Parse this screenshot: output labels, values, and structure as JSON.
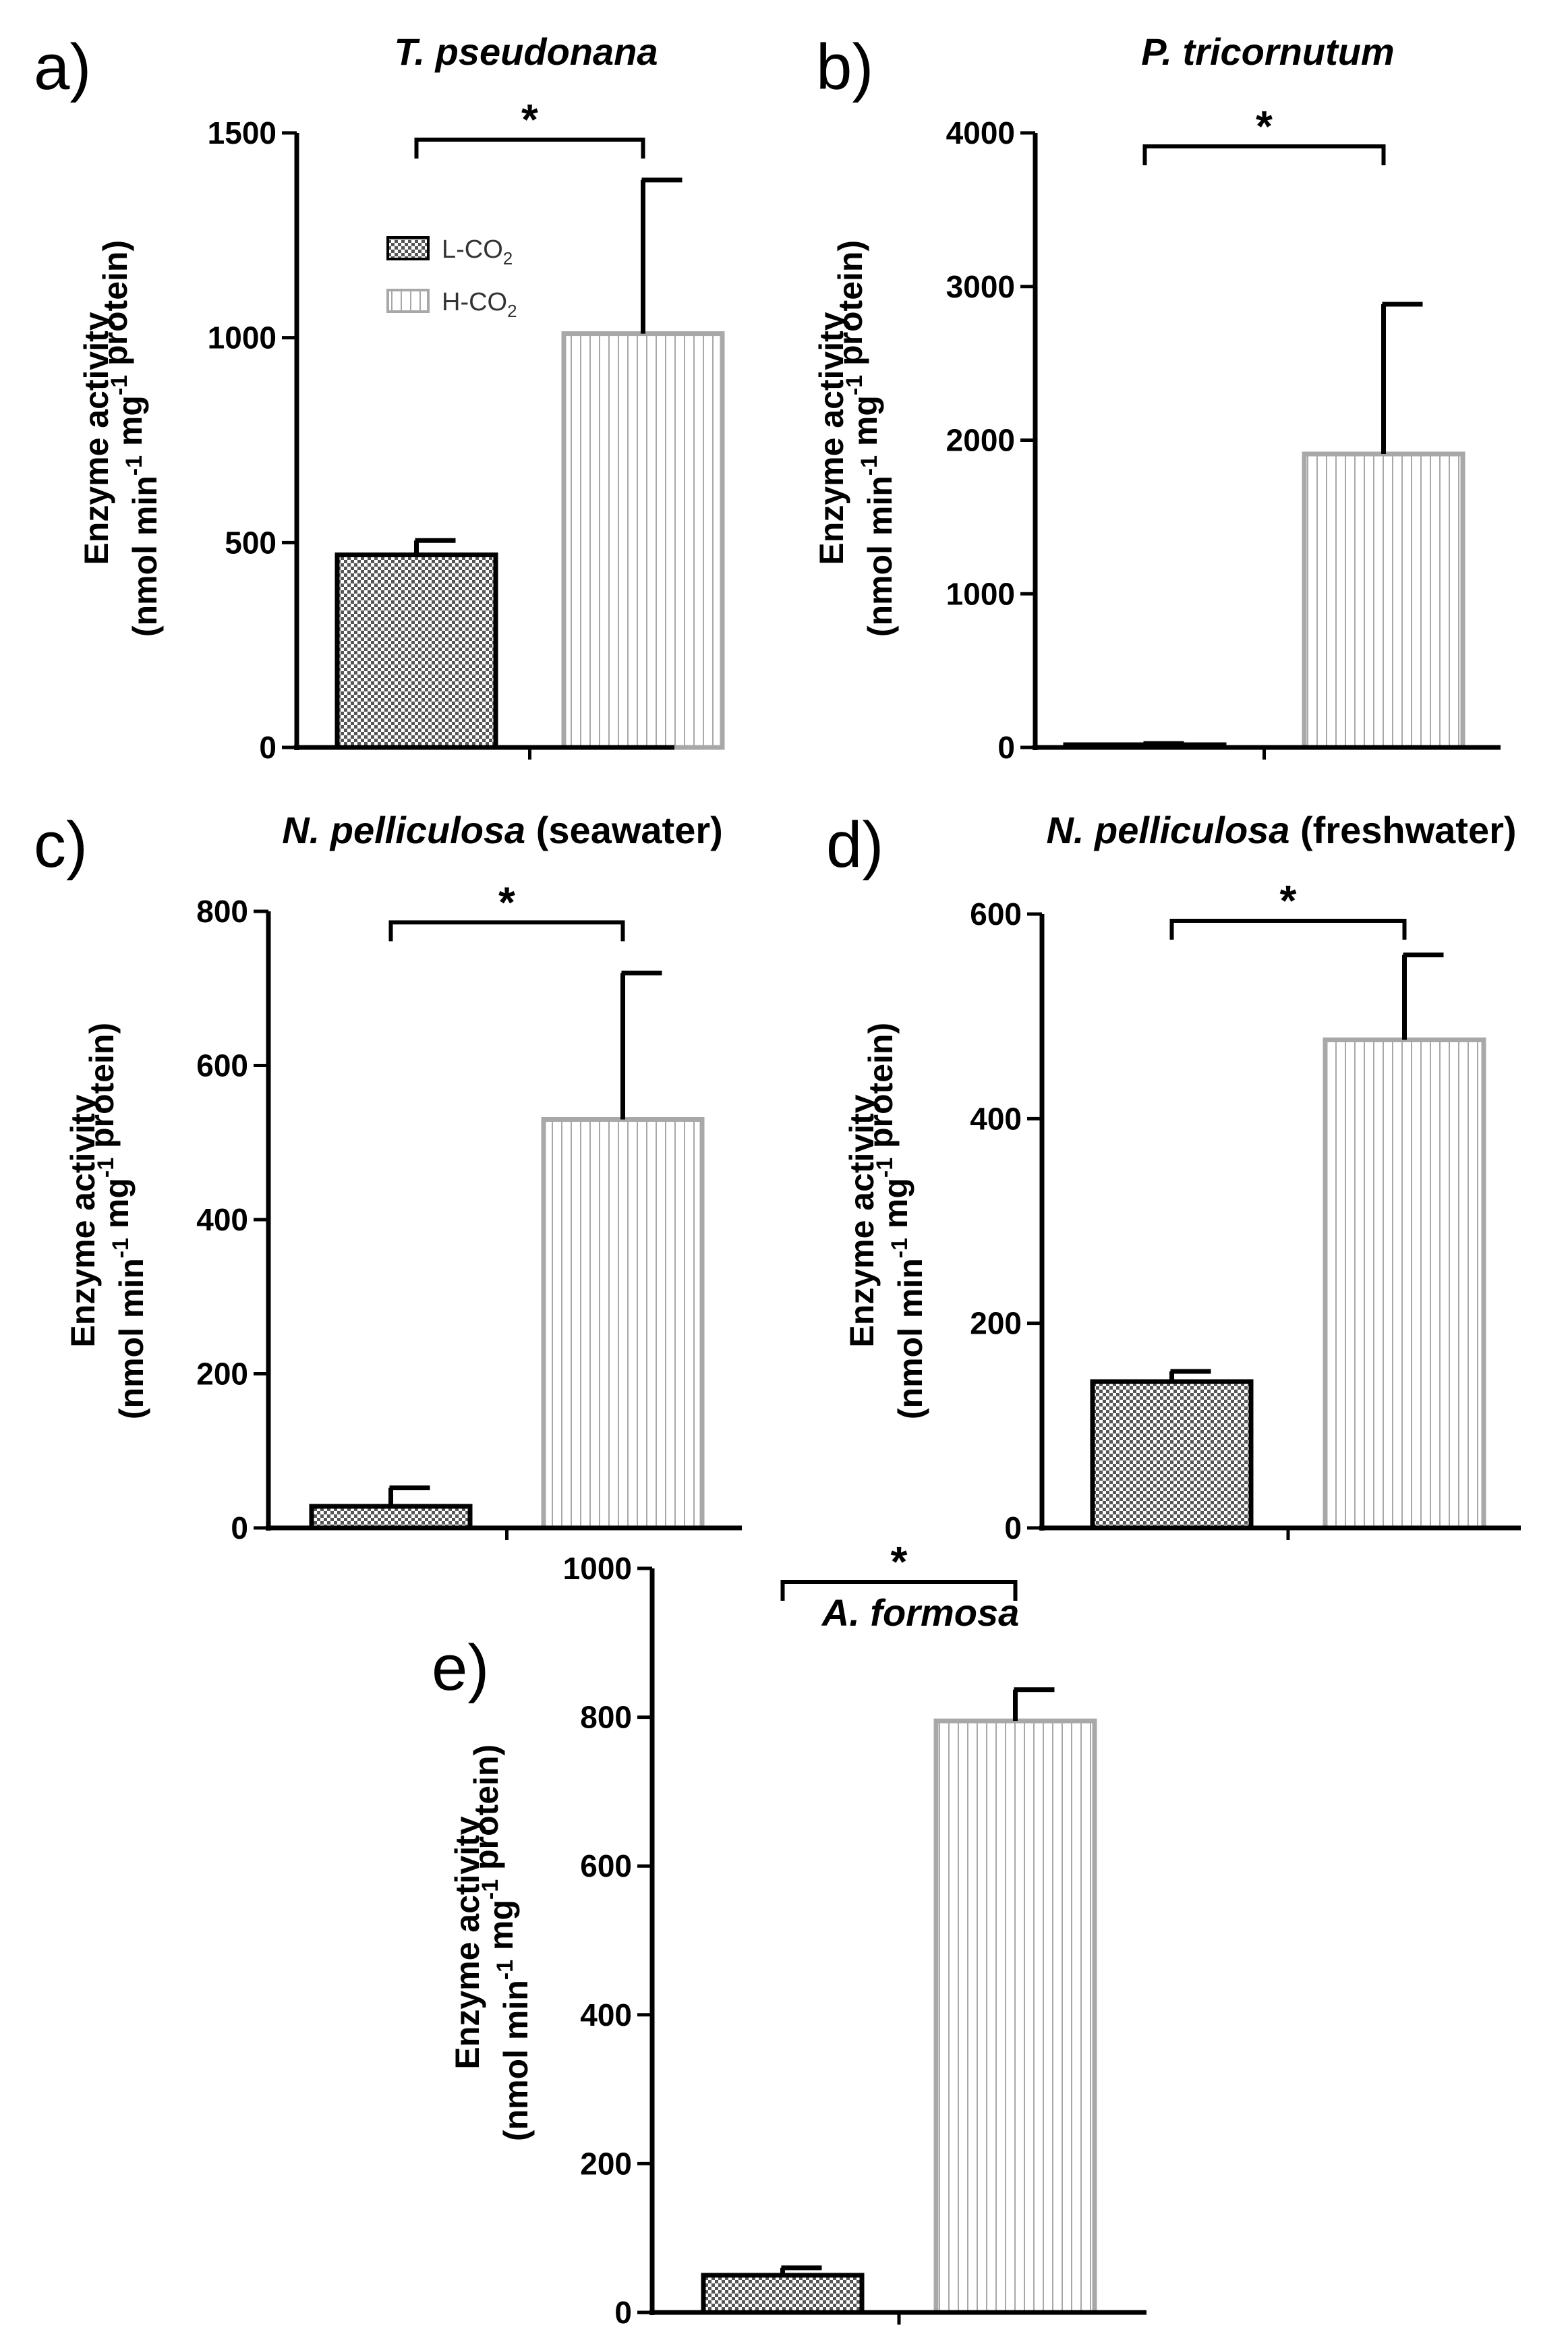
{
  "chart_data": [
    {
      "type": "bar",
      "panel_label": "a)",
      "title": "T. pseudonana",
      "title_suffix": "",
      "ylabel_line1": "Enzyme activity",
      "ylabel_line2": "(nmol min-1 mg-1 protein)",
      "ylim": [
        0,
        1500
      ],
      "yticks": [
        "0",
        "500",
        "1000",
        "1500"
      ],
      "ytick_values": [
        0,
        500,
        1000,
        1500
      ],
      "categories": [
        "L-CO2",
        "H-CO2"
      ],
      "values": [
        470,
        1010
      ],
      "errors": [
        35,
        375
      ],
      "significance": "*",
      "legend": [
        "L-CO2",
        "H-CO2"
      ]
    },
    {
      "type": "bar",
      "panel_label": "b)",
      "title": "P. tricornutum",
      "title_suffix": "",
      "ylabel_line1": "Enzyme activity",
      "ylabel_line2": "(nmol min-1 mg-1 protein)",
      "ylim": [
        0,
        4000
      ],
      "yticks": [
        "0",
        "1000",
        "2000",
        "3000",
        "4000"
      ],
      "ytick_values": [
        0,
        1000,
        2000,
        3000,
        4000
      ],
      "categories": [
        "L-CO2",
        "H-CO2"
      ],
      "values": [
        15,
        1910
      ],
      "errors": [
        10,
        975
      ],
      "significance": "*"
    },
    {
      "type": "bar",
      "panel_label": "c)",
      "title": "N. pelliculosa",
      "title_suffix": "(seawater)",
      "ylabel_line1": "Enzyme activity",
      "ylabel_line2": "(nmol min-1 mg-1 protein)",
      "ylim": [
        0,
        800
      ],
      "yticks": [
        "0",
        "200",
        "400",
        "600",
        "800"
      ],
      "ytick_values": [
        0,
        200,
        400,
        600,
        800
      ],
      "categories": [
        "L-CO2",
        "H-CO2"
      ],
      "values": [
        28,
        530
      ],
      "errors": [
        24,
        190
      ],
      "significance": "*"
    },
    {
      "type": "bar",
      "panel_label": "d)",
      "title": "N. pelliculosa",
      "title_suffix": "(freshwater)",
      "ylabel_line1": "Enzyme activity",
      "ylabel_line2": "(nmol min-1 mg-1 protein)",
      "ylim": [
        0,
        600
      ],
      "yticks": [
        "0",
        "200",
        "400",
        "600"
      ],
      "ytick_values": [
        0,
        200,
        400,
        600
      ],
      "categories": [
        "L-CO2",
        "H-CO2"
      ],
      "values": [
        143,
        477
      ],
      "errors": [
        10,
        83
      ],
      "significance": "*"
    },
    {
      "type": "bar",
      "panel_label": "e)",
      "title": "A. formosa",
      "title_suffix": "",
      "ylabel_line1": "Enzyme activity",
      "ylabel_line2": "(nmol min-1 mg-1 protein)",
      "ylim": [
        0,
        1000
      ],
      "yticks": [
        "0",
        "200",
        "400",
        "600",
        "800",
        "1000"
      ],
      "ytick_values": [
        0,
        200,
        400,
        600,
        800,
        1000
      ],
      "categories": [
        "L-CO2",
        "H-CO2"
      ],
      "values": [
        50,
        795
      ],
      "errors": [
        10,
        42
      ],
      "significance": "*"
    }
  ],
  "colors": {
    "low_co2_fill": "#6e6e6e",
    "low_co2_stroke": "#000000",
    "high_co2_stroke": "#a8a8a8",
    "axis": "#000000"
  }
}
